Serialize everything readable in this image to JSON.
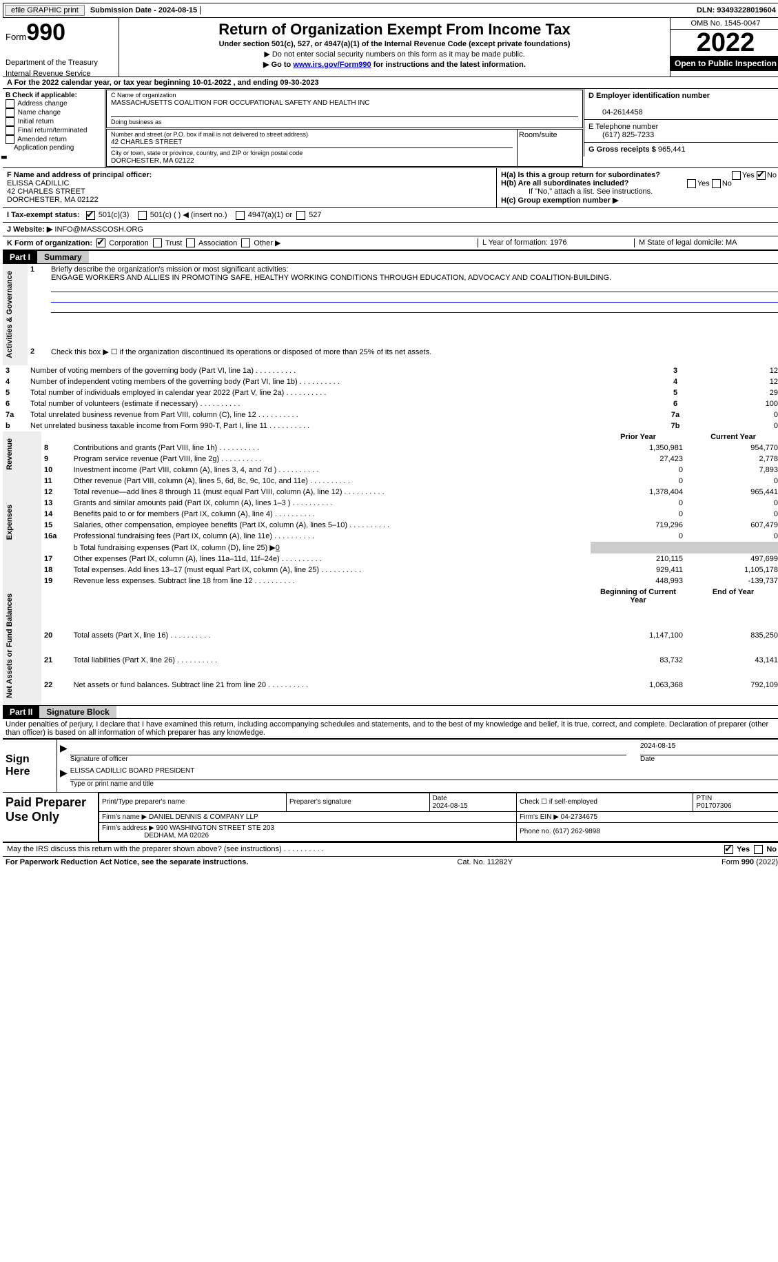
{
  "toolbar": {
    "efile": "efile GRAPHIC print",
    "sub_label": "Submission Date - 2024-08-15",
    "dln": "DLN: 93493228019604"
  },
  "header": {
    "form": "Form",
    "num": "990",
    "dept": "Department of the Treasury",
    "irs": "Internal Revenue Service",
    "title": "Return of Organization Exempt From Income Tax",
    "sub": "Under section 501(c), 527, or 4947(a)(1) of the Internal Revenue Code (except private foundations)",
    "note1": "▶ Do not enter social security numbers on this form as it may be made public.",
    "note2_pre": "▶ Go to ",
    "note2_link": "www.irs.gov/Form990",
    "note2_post": " for instructions and the latest information.",
    "omb": "OMB No. 1545-0047",
    "year": "2022",
    "inspect": "Open to Public Inspection"
  },
  "lineA": "A For the 2022 calendar year, or tax year beginning 10-01-2022    , and ending 09-30-2023",
  "sectionB": {
    "label": "B Check if applicable:",
    "items": [
      "Address change",
      "Name change",
      "Initial return",
      "Final return/terminated",
      "Amended return",
      "Application pending"
    ]
  },
  "sectionC": {
    "name_label": "C Name of organization",
    "name": "MASSACHUSETTS COALITION FOR OCCUPATIONAL SAFETY AND HEALTH INC",
    "dba_label": "Doing business as",
    "addr_label": "Number and street (or P.O. box if mail is not delivered to street address)",
    "room_label": "Room/suite",
    "addr": "42 CHARLES STREET",
    "city_label": "City or town, state or province, country, and ZIP or foreign postal code",
    "city": "DORCHESTER, MA  02122"
  },
  "sectionD": {
    "label": "D Employer identification number",
    "val": "04-2614458"
  },
  "sectionE": {
    "label": "E Telephone number",
    "val": "(617) 825-7233"
  },
  "sectionG": {
    "label": "G Gross receipts $",
    "val": "965,441"
  },
  "sectionF": {
    "label": "F Name and address of principal officer:",
    "name": "ELISSA CADILLIC",
    "addr1": "42 CHARLES STREET",
    "addr2": "DORCHESTER, MA  02122"
  },
  "sectionH": {
    "a": "H(a)  Is this a group return for subordinates?",
    "b": "H(b)  Are all subordinates included?",
    "bnote": "If \"No,\" attach a list. See instructions.",
    "c": "H(c)  Group exemption number ▶",
    "yes": "Yes",
    "no": "No"
  },
  "rowI": {
    "label": "I   Tax-exempt status:",
    "c3": "501(c)(3)",
    "c": "501(c) (  ) ◀ (insert no.)",
    "a1": "4947(a)(1) or",
    "s527": "527"
  },
  "rowJ": {
    "label": "J   Website: ▶",
    "val": " INFO@MASSCOSH.ORG"
  },
  "rowK": {
    "label": "K Form of organization:",
    "corp": "Corporation",
    "trust": "Trust",
    "assoc": "Association",
    "other": "Other ▶",
    "L": "L Year of formation: 1976",
    "M": "M State of legal domicile: MA"
  },
  "part1": {
    "num": "Part I",
    "title": "Summary"
  },
  "summary": {
    "q1": "Briefly describe the organization's mission or most significant activities:",
    "mission": "ENGAGE WORKERS AND ALLIES IN PROMOTING SAFE, HEALTHY WORKING CONDITIONS THROUGH EDUCATION, ADVOCACY AND COALITION-BUILDING.",
    "q2": "Check this box ▶ ☐ if the organization discontinued its operations or disposed of more than 25% of its net assets.",
    "rows": [
      {
        "n": "3",
        "t": "Number of voting members of the governing body (Part VI, line 1a)",
        "b": "3",
        "v": "12"
      },
      {
        "n": "4",
        "t": "Number of independent voting members of the governing body (Part VI, line 1b)",
        "b": "4",
        "v": "12"
      },
      {
        "n": "5",
        "t": "Total number of individuals employed in calendar year 2022 (Part V, line 2a)",
        "b": "5",
        "v": "29"
      },
      {
        "n": "6",
        "t": "Total number of volunteers (estimate if necessary)",
        "b": "6",
        "v": "100"
      },
      {
        "n": "7a",
        "t": "Total unrelated business revenue from Part VIII, column (C), line 12",
        "b": "7a",
        "v": "0"
      },
      {
        "n": "b",
        "t": "Net unrelated business taxable income from Form 990-T, Part I, line 11",
        "b": "7b",
        "v": "0"
      }
    ],
    "prior": "Prior Year",
    "current": "Current Year",
    "rev": [
      {
        "n": "8",
        "t": "Contributions and grants (Part VIII, line 1h)",
        "p": "1,350,981",
        "c": "954,770"
      },
      {
        "n": "9",
        "t": "Program service revenue (Part VIII, line 2g)",
        "p": "27,423",
        "c": "2,778"
      },
      {
        "n": "10",
        "t": "Investment income (Part VIII, column (A), lines 3, 4, and 7d )",
        "p": "0",
        "c": "7,893"
      },
      {
        "n": "11",
        "t": "Other revenue (Part VIII, column (A), lines 5, 6d, 8c, 9c, 10c, and 11e)",
        "p": "0",
        "c": "0"
      },
      {
        "n": "12",
        "t": "Total revenue—add lines 8 through 11 (must equal Part VIII, column (A), line 12)",
        "p": "1,378,404",
        "c": "965,441"
      }
    ],
    "exp": [
      {
        "n": "13",
        "t": "Grants and similar amounts paid (Part IX, column (A), lines 1–3 )",
        "p": "0",
        "c": "0"
      },
      {
        "n": "14",
        "t": "Benefits paid to or for members (Part IX, column (A), line 4)",
        "p": "0",
        "c": "0"
      },
      {
        "n": "15",
        "t": "Salaries, other compensation, employee benefits (Part IX, column (A), lines 5–10)",
        "p": "719,296",
        "c": "607,479"
      },
      {
        "n": "16a",
        "t": "Professional fundraising fees (Part IX, column (A), line 11e)",
        "p": "0",
        "c": "0"
      }
    ],
    "line_b": "b  Total fundraising expenses (Part IX, column (D), line 25) ▶",
    "line_b_val": "0",
    "exp2": [
      {
        "n": "17",
        "t": "Other expenses (Part IX, column (A), lines 11a–11d, 11f–24e)",
        "p": "210,115",
        "c": "497,699"
      },
      {
        "n": "18",
        "t": "Total expenses. Add lines 13–17 (must equal Part IX, column (A), line 25)",
        "p": "929,411",
        "c": "1,105,178"
      },
      {
        "n": "19",
        "t": "Revenue less expenses. Subtract line 18 from line 12",
        "p": "448,993",
        "c": "-139,737"
      }
    ],
    "beg": "Beginning of Current Year",
    "end": "End of Year",
    "net": [
      {
        "n": "20",
        "t": "Total assets (Part X, line 16)",
        "p": "1,147,100",
        "c": "835,250"
      },
      {
        "n": "21",
        "t": "Total liabilities (Part X, line 26)",
        "p": "83,732",
        "c": "43,141"
      },
      {
        "n": "22",
        "t": "Net assets or fund balances. Subtract line 21 from line 20",
        "p": "1,063,368",
        "c": "792,109"
      }
    ],
    "tabs": {
      "ag": "Activities & Governance",
      "rev": "Revenue",
      "exp": "Expenses",
      "net": "Net Assets or Fund Balances"
    }
  },
  "part2": {
    "num": "Part II",
    "title": "Signature Block"
  },
  "perjury": "Under penalties of perjury, I declare that I have examined this return, including accompanying schedules and statements, and to the best of my knowledge and belief, it is true, correct, and complete. Declaration of preparer (other than officer) is based on all information of which preparer has any knowledge.",
  "sign": {
    "here": "Sign Here",
    "sig_label": "Signature of officer",
    "date": "2024-08-15",
    "date_label": "Date",
    "name": "ELISSA CADILLIC  BOARD PRESIDENT",
    "name_label": "Type or print name and title"
  },
  "paid": {
    "label": "Paid Preparer Use Only",
    "h1": "Print/Type preparer's name",
    "h2": "Preparer's signature",
    "h3": "Date",
    "d3": "2024-08-15",
    "h4": "Check ☐ if self-employed",
    "h5": "PTIN",
    "ptin": "P01707306",
    "firm_l": "Firm's name    ▶",
    "firm": "DANIEL DENNIS & COMPANY LLP",
    "ein_l": "Firm's EIN ▶",
    "ein": "04-2734675",
    "addr_l": "Firm's address ▶",
    "addr1": "990 WASHINGTON STREET STE 203",
    "addr2": "DEDHAM, MA  02026",
    "phone_l": "Phone no.",
    "phone": "(617) 262-9898"
  },
  "discuss": "May the IRS discuss this return with the preparer shown above? (see instructions)",
  "footer": {
    "l": "For Paperwork Reduction Act Notice, see the separate instructions.",
    "c": "Cat. No. 11282Y",
    "r": "Form 990 (2022)"
  }
}
